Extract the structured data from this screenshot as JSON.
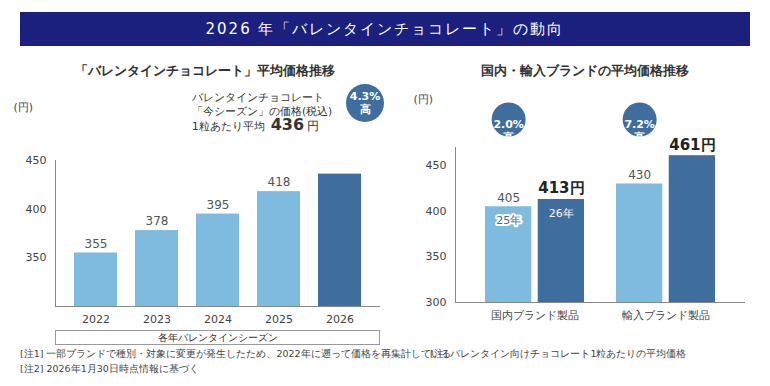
{
  "title": "2026 年「バレンタインチョコレート」の動向",
  "chart_data": [
    {
      "type": "bar",
      "title": "「バレンタインチョコレート」平均価格推移",
      "categories": [
        "2022",
        "2023",
        "2024",
        "2025",
        "2026"
      ],
      "values": [
        355,
        378,
        395,
        418,
        436
      ],
      "value_labels": [
        "355",
        "378",
        "395",
        "418",
        null
      ],
      "colors": [
        "#7fbadf",
        "#7fbadf",
        "#7fbadf",
        "#7fbadf",
        "#3f6d9e"
      ],
      "x_group_label": "各年バレンタインシーズン",
      "y_label": "(円)",
      "ylim": [
        300,
        450
      ],
      "yticks": [
        350,
        400,
        450
      ],
      "data_labels": true,
      "grid": false,
      "callout": {
        "lines": [
          "バレンタインチョコレート",
          "「今シーズン」の価格(税込)"
        ],
        "prefix": "1粒あたり平均",
        "value": 436,
        "unit": "円",
        "badge": [
          "4.3%",
          "高"
        ]
      },
      "notes": [
        "[注1] 一部ブランドで種別・対象に変更が発生したため、2022年に遡って価格を再集計している",
        "[注2] 2026年1月30日時点情報に基づく"
      ]
    },
    {
      "type": "bar",
      "title": "国内・輸入ブランドの平均価格推移",
      "categories": [
        "国内ブランド製品",
        "輸入ブランド製品"
      ],
      "series": [
        {
          "name": "25年",
          "color": "#7fbadf",
          "values": [
            405,
            430
          ],
          "value_labels": [
            "405",
            "430"
          ]
        },
        {
          "name": "26年",
          "color": "#3f6d9e",
          "values": [
            413,
            461
          ],
          "value_labels": [
            "413円",
            "461円"
          ]
        }
      ],
      "y_label": "(円)",
      "ylim": [
        300,
        470
      ],
      "yticks": [
        300,
        350,
        400,
        450
      ],
      "data_labels": true,
      "grid": false,
      "badges": [
        [
          "2.0%",
          "高"
        ],
        [
          "7.2%",
          "高"
        ]
      ],
      "notes": [
        "[注] バレンタイン向けチョコレート1粒あたりの平均価格"
      ]
    }
  ]
}
